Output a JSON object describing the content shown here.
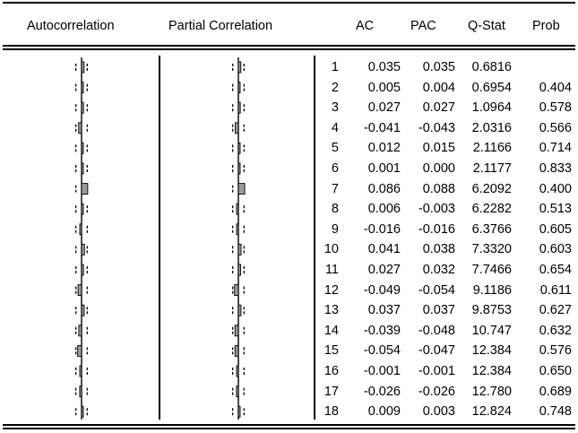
{
  "headers": {
    "autocorrelation": "Autocorrelation",
    "partial_correlation": "Partial Correlation",
    "ac": "AC",
    "pac": "PAC",
    "qstat": "Q-Stat",
    "prob": "Prob"
  },
  "chart_data": {
    "type": "table",
    "columns": [
      "",
      "AC",
      "PAC",
      "Q-Stat",
      "Prob"
    ],
    "rows": [
      {
        "lag": "1",
        "ac": "0.035",
        "pac": "0.035",
        "q": "0.6816",
        "prob": ""
      },
      {
        "lag": "2",
        "ac": "0.005",
        "pac": "0.004",
        "q": "0.6954",
        "prob": "0.404"
      },
      {
        "lag": "3",
        "ac": "0.027",
        "pac": "0.027",
        "q": "1.0964",
        "prob": "0.578"
      },
      {
        "lag": "4",
        "ac": "-0.041",
        "pac": "-0.043",
        "q": "2.0316",
        "prob": "0.566"
      },
      {
        "lag": "5",
        "ac": "0.012",
        "pac": "0.015",
        "q": "2.1166",
        "prob": "0.714"
      },
      {
        "lag": "6",
        "ac": "0.001",
        "pac": "0.000",
        "q": "2.1177",
        "prob": "0.833"
      },
      {
        "lag": "7",
        "ac": "0.086",
        "pac": "0.088",
        "q": "6.2092",
        "prob": "0.400"
      },
      {
        "lag": "8",
        "ac": "0.006",
        "pac": "-0.003",
        "q": "6.2282",
        "prob": "0.513"
      },
      {
        "lag": "9",
        "ac": "-0.016",
        "pac": "-0.016",
        "q": "6.3766",
        "prob": "0.605"
      },
      {
        "lag": "10",
        "ac": "0.041",
        "pac": "0.038",
        "q": "7.3320",
        "prob": "0.603"
      },
      {
        "lag": "11",
        "ac": "0.027",
        "pac": "0.032",
        "q": "7.7466",
        "prob": "0.654"
      },
      {
        "lag": "12",
        "ac": "-0.049",
        "pac": "-0.054",
        "q": "9.1186",
        "prob": "0.611"
      },
      {
        "lag": "13",
        "ac": "0.037",
        "pac": "0.037",
        "q": "9.8753",
        "prob": "0.627"
      },
      {
        "lag": "14",
        "ac": "-0.039",
        "pac": "-0.048",
        "q": "10.747",
        "prob": "0.632"
      },
      {
        "lag": "15",
        "ac": "-0.054",
        "pac": "-0.047",
        "q": "12.384",
        "prob": "0.576"
      },
      {
        "lag": "16",
        "ac": "-0.001",
        "pac": "-0.001",
        "q": "12.384",
        "prob": "0.650"
      },
      {
        "lag": "17",
        "ac": "-0.026",
        "pac": "-0.026",
        "q": "12.780",
        "prob": "0.689"
      },
      {
        "lag": "18",
        "ac": "0.009",
        "pac": "0.003",
        "q": "12.824",
        "prob": "0.748"
      }
    ],
    "correlogram": {
      "bar_color": "#9a9a9a",
      "confidence_band": 0.079
    }
  }
}
